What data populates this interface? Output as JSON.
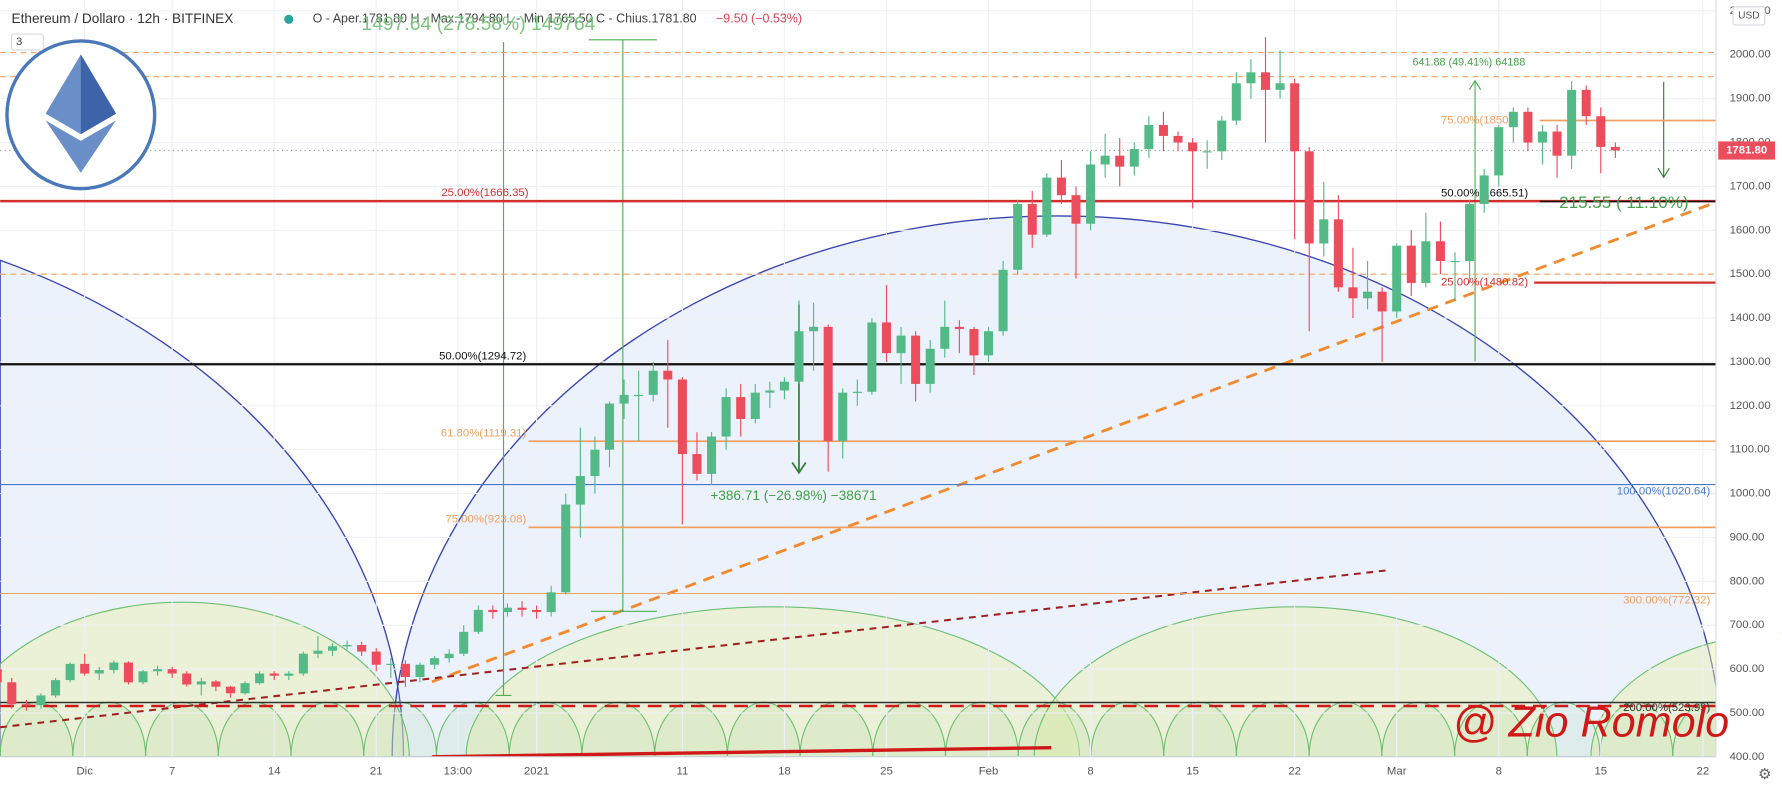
{
  "header": {
    "title": "Ethereum / Dollaro · 12h · BITFINEX",
    "ohlc": "O - Aper.1781.80  H - Max.1794.80  L - Min.1765.50  C - Chius.1781.80",
    "change": "−9.50 (−0.53%)",
    "indicators": "3",
    "currency": "USD"
  },
  "chart_data": {
    "type": "candlestick",
    "up_color": "#53b987",
    "down_color": "#eb4d5c",
    "xlim": [
      0.2,
      117.9
    ],
    "ylim": [
      392,
      2110
    ],
    "xticks": [
      {
        "value": 6,
        "label": "Dic"
      },
      {
        "value": 12,
        "label": "7"
      },
      {
        "value": 19,
        "label": "14"
      },
      {
        "value": 26,
        "label": "21"
      },
      {
        "value": 31.6,
        "label": "13:00"
      },
      {
        "value": 37,
        "label": "2021"
      },
      {
        "value": 47,
        "label": "11"
      },
      {
        "value": 54,
        "label": "18"
      },
      {
        "value": 61,
        "label": "25"
      },
      {
        "value": 68,
        "label": "Feb"
      },
      {
        "value": 75,
        "label": "8"
      },
      {
        "value": 82,
        "label": "15"
      },
      {
        "value": 89,
        "label": "22"
      },
      {
        "value": 96,
        "label": "Mar"
      },
      {
        "value": 103,
        "label": "8"
      },
      {
        "value": 110,
        "label": "15"
      },
      {
        "value": 117,
        "label": "22"
      }
    ],
    "yticks": [
      {
        "value": 400,
        "label": "400.00"
      },
      {
        "value": 500,
        "label": "500.00"
      },
      {
        "value": 600,
        "label": "600.00"
      },
      {
        "value": 700,
        "label": "700.00"
      },
      {
        "value": 800,
        "label": "800.00"
      },
      {
        "value": 900,
        "label": "900.00"
      },
      {
        "value": 1000,
        "label": "1000.00"
      },
      {
        "value": 1100,
        "label": "1100.00"
      },
      {
        "value": 1200,
        "label": "1200.00"
      },
      {
        "value": 1300,
        "label": "1300.00"
      },
      {
        "value": 1400,
        "label": "1400.00"
      },
      {
        "value": 1500,
        "label": "1500.00"
      },
      {
        "value": 1600,
        "label": "1600.00"
      },
      {
        "value": 1700,
        "label": "1700.00"
      },
      {
        "value": 1800,
        "label": "1800.00"
      },
      {
        "value": 1900,
        "label": "1900.00"
      },
      {
        "value": 2000,
        "label": "2000.00"
      },
      {
        "value": 2100,
        "label": "2100.00"
      }
    ],
    "grid": true,
    "candles": [
      [
        600,
        615,
        560,
        570
      ],
      [
        570,
        580,
        510,
        520
      ],
      [
        520,
        530,
        505,
        518
      ],
      [
        518,
        545,
        510,
        540
      ],
      [
        540,
        580,
        535,
        575
      ],
      [
        575,
        615,
        570,
        612
      ],
      [
        612,
        635,
        585,
        590
      ],
      [
        590,
        605,
        575,
        598
      ],
      [
        598,
        620,
        590,
        615
      ],
      [
        615,
        618,
        565,
        570
      ],
      [
        570,
        598,
        565,
        595
      ],
      [
        595,
        608,
        585,
        600
      ],
      [
        600,
        605,
        580,
        590
      ],
      [
        590,
        595,
        560,
        565
      ],
      [
        565,
        580,
        540,
        572
      ],
      [
        572,
        575,
        550,
        560
      ],
      [
        560,
        562,
        535,
        545
      ],
      [
        545,
        572,
        542,
        568
      ],
      [
        568,
        595,
        565,
        590
      ],
      [
        590,
        595,
        575,
        585
      ],
      [
        585,
        595,
        575,
        590
      ],
      [
        590,
        640,
        585,
        635
      ],
      [
        635,
        675,
        625,
        642
      ],
      [
        642,
        660,
        630,
        652
      ],
      [
        652,
        665,
        645,
        655
      ],
      [
        655,
        662,
        630,
        640
      ],
      [
        640,
        648,
        595,
        610
      ],
      [
        610,
        625,
        580,
        612
      ],
      [
        612,
        620,
        560,
        582
      ],
      [
        582,
        615,
        570,
        610
      ],
      [
        610,
        630,
        600,
        625
      ],
      [
        625,
        645,
        615,
        635
      ],
      [
        635,
        700,
        630,
        685
      ],
      [
        685,
        745,
        680,
        735
      ],
      [
        735,
        745,
        715,
        730
      ],
      [
        730,
        750,
        720,
        740
      ],
      [
        740,
        755,
        720,
        735
      ],
      [
        735,
        745,
        715,
        730
      ],
      [
        730,
        790,
        720,
        775
      ],
      [
        775,
        1000,
        770,
        975
      ],
      [
        975,
        1150,
        900,
        1040
      ],
      [
        1040,
        1130,
        1000,
        1100
      ],
      [
        1100,
        1210,
        1060,
        1205
      ],
      [
        1205,
        1260,
        1170,
        1225
      ],
      [
        1225,
        1280,
        1120,
        1225
      ],
      [
        1225,
        1300,
        1210,
        1280
      ],
      [
        1280,
        1350,
        1150,
        1260
      ],
      [
        1260,
        1265,
        930,
        1090
      ],
      [
        1090,
        1140,
        1030,
        1045
      ],
      [
        1045,
        1140,
        1020,
        1130
      ],
      [
        1130,
        1240,
        1100,
        1220
      ],
      [
        1220,
        1250,
        1130,
        1170
      ],
      [
        1170,
        1250,
        1160,
        1230
      ],
      [
        1230,
        1255,
        1195,
        1235
      ],
      [
        1235,
        1265,
        1215,
        1255
      ],
      [
        1255,
        1440,
        1250,
        1370
      ],
      [
        1370,
        1435,
        1280,
        1380
      ],
      [
        1380,
        1385,
        1050,
        1120
      ],
      [
        1120,
        1240,
        1080,
        1230
      ],
      [
        1230,
        1260,
        1200,
        1232
      ],
      [
        1232,
        1400,
        1225,
        1390
      ],
      [
        1390,
        1475,
        1300,
        1320
      ],
      [
        1320,
        1380,
        1250,
        1360
      ],
      [
        1360,
        1370,
        1210,
        1250
      ],
      [
        1250,
        1350,
        1230,
        1330
      ],
      [
        1330,
        1440,
        1310,
        1380
      ],
      [
        1380,
        1395,
        1320,
        1375
      ],
      [
        1375,
        1380,
        1270,
        1315
      ],
      [
        1315,
        1380,
        1300,
        1370
      ],
      [
        1370,
        1530,
        1360,
        1510
      ],
      [
        1510,
        1670,
        1500,
        1660
      ],
      [
        1660,
        1690,
        1560,
        1590
      ],
      [
        1590,
        1730,
        1585,
        1720
      ],
      [
        1720,
        1760,
        1660,
        1680
      ],
      [
        1680,
        1700,
        1490,
        1615
      ],
      [
        1615,
        1780,
        1600,
        1750
      ],
      [
        1750,
        1820,
        1720,
        1770
      ],
      [
        1770,
        1810,
        1700,
        1745
      ],
      [
        1745,
        1800,
        1725,
        1785
      ],
      [
        1785,
        1860,
        1765,
        1840
      ],
      [
        1840,
        1870,
        1780,
        1815
      ],
      [
        1815,
        1825,
        1780,
        1800
      ],
      [
        1800,
        1810,
        1650,
        1780
      ],
      [
        1780,
        1805,
        1740,
        1780
      ],
      [
        1780,
        1860,
        1760,
        1850
      ],
      [
        1850,
        1960,
        1840,
        1935
      ],
      [
        1935,
        1990,
        1900,
        1960
      ],
      [
        1960,
        2040,
        1800,
        1920
      ],
      [
        1920,
        2010,
        1900,
        1935
      ],
      [
        1935,
        1945,
        1580,
        1780
      ],
      [
        1780,
        1790,
        1370,
        1570
      ],
      [
        1570,
        1710,
        1540,
        1625
      ],
      [
        1625,
        1680,
        1460,
        1470
      ],
      [
        1470,
        1560,
        1400,
        1445
      ],
      [
        1445,
        1530,
        1420,
        1460
      ],
      [
        1460,
        1470,
        1300,
        1415
      ],
      [
        1415,
        1570,
        1400,
        1565
      ],
      [
        1565,
        1600,
        1450,
        1480
      ],
      [
        1480,
        1640,
        1470,
        1575
      ],
      [
        1575,
        1620,
        1500,
        1530
      ],
      [
        1530,
        1550,
        1440,
        1530
      ],
      [
        1530,
        1670,
        1480,
        1660
      ],
      [
        1660,
        1740,
        1640,
        1725
      ],
      [
        1725,
        1840,
        1700,
        1835
      ],
      [
        1835,
        1880,
        1800,
        1870
      ],
      [
        1870,
        1880,
        1780,
        1800
      ],
      [
        1800,
        1840,
        1750,
        1825
      ],
      [
        1825,
        1840,
        1720,
        1770
      ],
      [
        1770,
        1940,
        1740,
        1920
      ],
      [
        1920,
        1930,
        1840,
        1860
      ],
      [
        1860,
        1880,
        1730,
        1790
      ],
      [
        1790,
        1800,
        1765,
        1782
      ]
    ],
    "last_price": {
      "value": 1781.8,
      "label": "1781.80"
    },
    "levels": [
      {
        "label": "25.00%(1666.35)",
        "value": 1666.35,
        "color": "#d32f2f"
      },
      {
        "label": "50.00%(1294.72)",
        "value": 1294.72,
        "color": "#111111"
      },
      {
        "label": "61.80%(1119.31)",
        "value": 1119.31,
        "color": "#f0a060"
      },
      {
        "label": "75.00%(923.08)",
        "value": 923.08,
        "color": "#f0a060"
      },
      {
        "label": "100.00%(1020.64)",
        "value": 1020.64,
        "color": "#4a78c8"
      },
      {
        "label": "300.00%(772.32)",
        "value": 772.32,
        "color": "#f0a060"
      },
      {
        "label": "200.00%(523.99)",
        "value": 523.99,
        "color": "#333333"
      },
      {
        "label": "75.00%(1850.2",
        "value": 1850.2,
        "color": "#f0a060"
      },
      {
        "label": "50.00%(1665.51)",
        "value": 1665.51,
        "color": "#111111"
      },
      {
        "label": "25.00%(1480.82)",
        "value": 1480.82,
        "color": "#d32f2f"
      }
    ],
    "dashed_levels": [
      2005,
      1950,
      1500,
      516
    ],
    "annotations": [
      "1497.64 (278.58%) 149764",
      "+386.71 (−26.98%) −38671",
      "641.88 (49.41%) 64188",
      "215.55 (  11.10%)"
    ],
    "signature": "@ Zio Romolo"
  }
}
